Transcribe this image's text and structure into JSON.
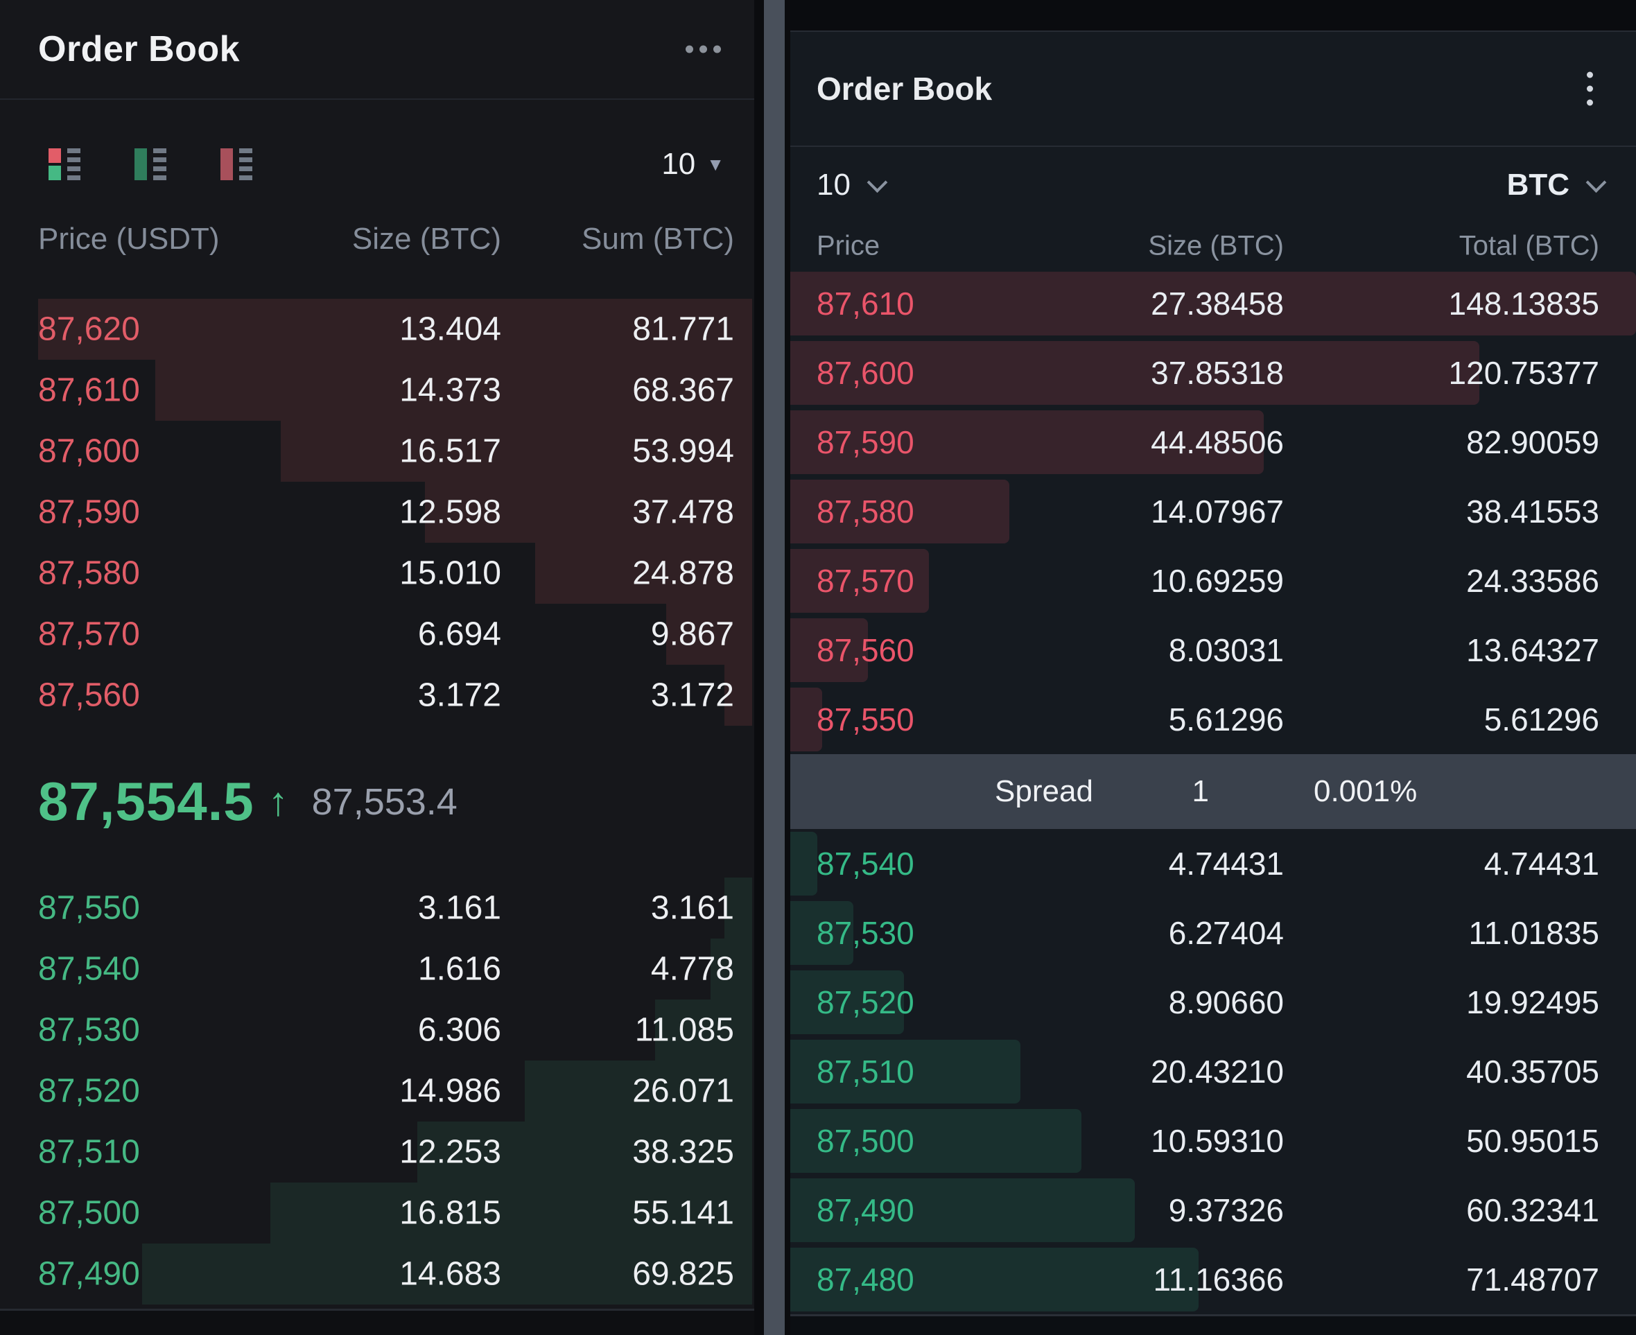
{
  "left_panel": {
    "title": "Order Book",
    "menu_icon": "ellipsis-horizontal-icon",
    "view_modes": [
      {
        "name": "split-book-view",
        "selected": true
      },
      {
        "name": "bids-only-view",
        "selected": false
      },
      {
        "name": "asks-only-view",
        "selected": false
      }
    ],
    "depth_select": {
      "value": "10"
    },
    "columns": {
      "price": "Price (USDT)",
      "size": "Size (BTC)",
      "sum": "Sum (BTC)"
    },
    "asks": [
      {
        "price": "87,620",
        "size": "13.404",
        "sum": "81.771"
      },
      {
        "price": "87,610",
        "size": "14.373",
        "sum": "68.367"
      },
      {
        "price": "87,600",
        "size": "16.517",
        "sum": "53.994"
      },
      {
        "price": "87,590",
        "size": "12.598",
        "sum": "37.478"
      },
      {
        "price": "87,580",
        "size": "15.010",
        "sum": "24.878"
      },
      {
        "price": "87,570",
        "size": "6.694",
        "sum": "9.867"
      },
      {
        "price": "87,560",
        "size": "3.172",
        "sum": "3.172"
      }
    ],
    "last_price": {
      "value": "87,554.5",
      "direction": "up",
      "arrow": "↑",
      "mark_price": "87,553.4"
    },
    "bids": [
      {
        "price": "87,550",
        "size": "3.161",
        "sum": "3.161"
      },
      {
        "price": "87,540",
        "size": "1.616",
        "sum": "4.778"
      },
      {
        "price": "87,530",
        "size": "6.306",
        "sum": "11.085"
      },
      {
        "price": "87,520",
        "size": "14.986",
        "sum": "26.071"
      },
      {
        "price": "87,510",
        "size": "12.253",
        "sum": "38.325"
      },
      {
        "price": "87,500",
        "size": "16.815",
        "sum": "55.141"
      },
      {
        "price": "87,490",
        "size": "14.683",
        "sum": "69.825"
      }
    ],
    "colors": {
      "ask": "#e25d68",
      "bid": "#45b984",
      "last": "#4fc188"
    }
  },
  "right_panel": {
    "title": "Order Book",
    "menu_icon": "kebab-menu-icon",
    "depth_select": {
      "value": "10"
    },
    "asset_select": {
      "value": "BTC"
    },
    "columns": {
      "price": "Price",
      "size": "Size (BTC)",
      "total": "Total (BTC)"
    },
    "asks": [
      {
        "price": "87,610",
        "size": "27.38458",
        "sum": "148.13835"
      },
      {
        "price": "87,600",
        "size": "37.85318",
        "sum": "120.75377"
      },
      {
        "price": "87,590",
        "size": "44.48506",
        "sum": "82.90059"
      },
      {
        "price": "87,580",
        "size": "14.07967",
        "sum": "38.41553"
      },
      {
        "price": "87,570",
        "size": "10.69259",
        "sum": "24.33586"
      },
      {
        "price": "87,560",
        "size": "8.03031",
        "sum": "13.64327"
      },
      {
        "price": "87,550",
        "size": "5.61296",
        "sum": "5.61296"
      }
    ],
    "spread": {
      "label": "Spread",
      "value": "1",
      "percent": "0.001%"
    },
    "bids": [
      {
        "price": "87,540",
        "size": "4.74431",
        "sum": "4.74431"
      },
      {
        "price": "87,530",
        "size": "6.27404",
        "sum": "11.01835"
      },
      {
        "price": "87,520",
        "size": "8.90660",
        "sum": "19.92495"
      },
      {
        "price": "87,510",
        "size": "20.43210",
        "sum": "40.35705"
      },
      {
        "price": "87,500",
        "size": "10.59310",
        "sum": "50.95015"
      },
      {
        "price": "87,490",
        "size": "9.37326",
        "sum": "60.32341"
      },
      {
        "price": "87,480",
        "size": "11.16366",
        "sum": "71.48707"
      }
    ],
    "colors": {
      "ask": "#ea556a",
      "bid": "#35ba87"
    }
  }
}
